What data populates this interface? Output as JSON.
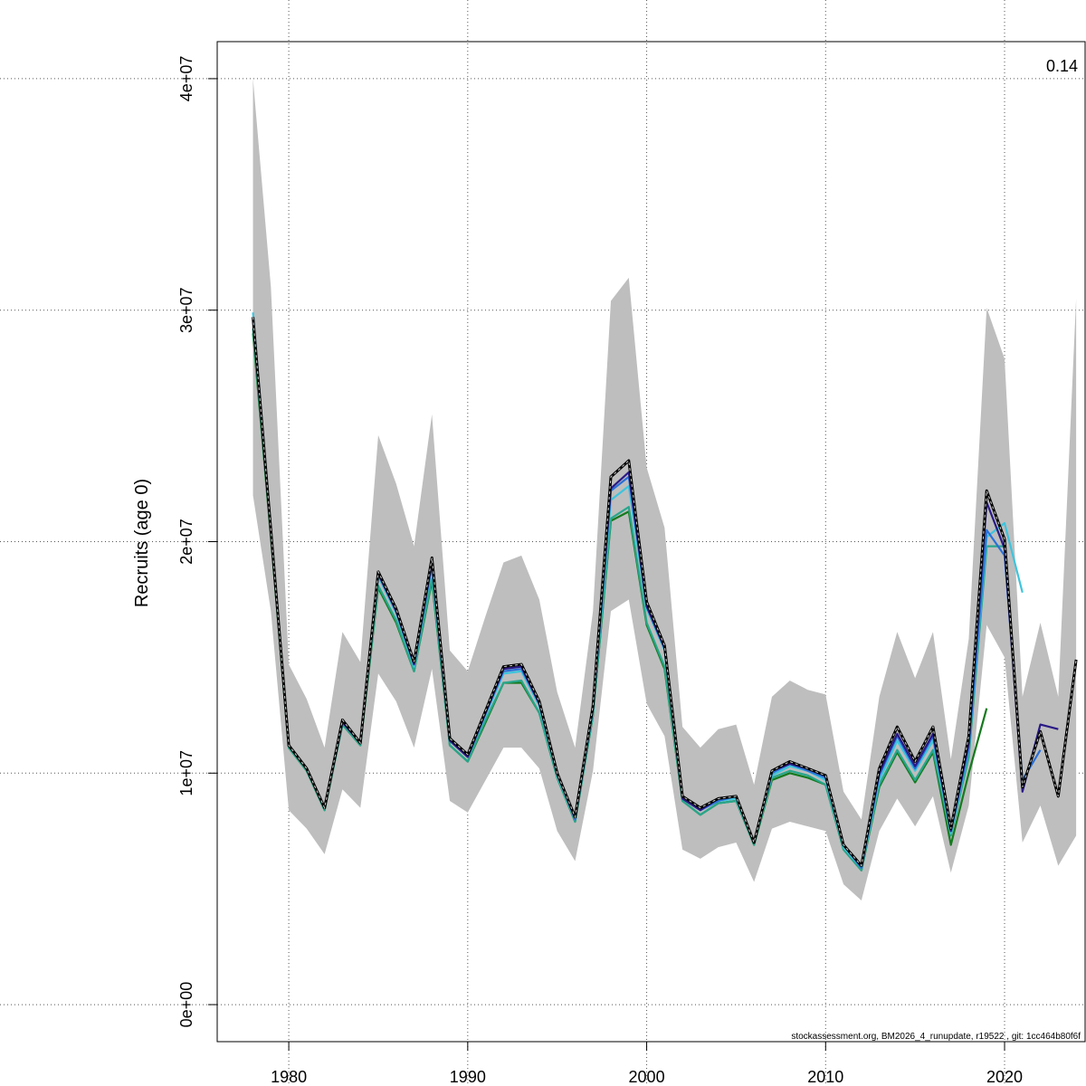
{
  "chart_data": {
    "type": "line",
    "ylabel": "Recruits (age 0)",
    "annotation": "0.14",
    "footer": "stockassessment.org, BM2026_4_runupdate, r19522 , git: 1cc464b80f6f",
    "xlim": [
      1976,
      2024.5
    ],
    "ylim": [
      -1600000,
      41600000
    ],
    "x_ticks": [
      1980,
      1990,
      2000,
      2010,
      2020
    ],
    "x_tick_labels": [
      "1980",
      "1990",
      "2000",
      "2010",
      "2020"
    ],
    "y_ticks": [
      0,
      10000000,
      20000000,
      30000000,
      40000000
    ],
    "y_tick_labels": [
      "0e+00",
      "1e+07",
      "2e+07",
      "3e+07",
      "4e+07"
    ],
    "grid": true,
    "colors": {
      "band": "#bebebe",
      "base": "#000000",
      "base_overlay": "#d3d3d3",
      "retro": [
        "#2a1a86",
        "#2a6fd8",
        "#3ec4dc",
        "#28a68c",
        "#157a1e",
        "#9a9a20"
      ]
    },
    "confidence_band": {
      "x": [
        1978,
        1979,
        1980,
        1981,
        1982,
        1983,
        1984,
        1985,
        1986,
        1987,
        1988,
        1989,
        1990,
        1991,
        1992,
        1993,
        1994,
        1995,
        1996,
        1997,
        1998,
        1999,
        2000,
        2001,
        2002,
        2003,
        2004,
        2005,
        2006,
        2007,
        2008,
        2009,
        2010,
        2011,
        2012,
        2013,
        2014,
        2015,
        2016,
        2017,
        2018,
        2019,
        2020,
        2021,
        2022,
        2023,
        2024
      ],
      "upper": [
        40000000,
        31000000,
        14700000,
        13200000,
        11100000,
        16100000,
        14800000,
        24600000,
        22500000,
        19800000,
        25500000,
        15300000,
        14400000,
        16800000,
        19100000,
        19400000,
        17500000,
        13500000,
        11100000,
        17000000,
        30400000,
        31400000,
        23200000,
        20600000,
        12000000,
        11100000,
        11900000,
        12100000,
        9500000,
        13300000,
        14000000,
        13600000,
        13400000,
        9200000,
        8000000,
        13300000,
        16100000,
        14100000,
        16100000,
        10600000,
        15800000,
        30100000,
        27900000,
        13300000,
        16500000,
        13300000,
        30500000
      ],
      "lower": [
        22000000,
        17000000,
        8400000,
        7600000,
        6500000,
        9300000,
        8500000,
        14300000,
        13100000,
        11100000,
        14500000,
        8800000,
        8300000,
        9700000,
        11100000,
        11100000,
        10200000,
        7500000,
        6200000,
        10100000,
        17000000,
        17500000,
        13000000,
        11600000,
        6700000,
        6300000,
        6800000,
        7000000,
        5300000,
        7600000,
        7900000,
        7700000,
        7500000,
        5200000,
        4500000,
        7500000,
        8900000,
        7700000,
        9000000,
        5700000,
        8600000,
        16400000,
        15000000,
        7000000,
        8600000,
        6000000,
        7300000
      ]
    },
    "series": [
      {
        "x": [
          1978,
          1979,
          1980,
          1981,
          1982,
          1983,
          1984,
          1985,
          1986,
          1987,
          1988,
          1989,
          1990,
          1991,
          1992,
          1993,
          1994,
          1995,
          1996,
          1997,
          1998,
          1999,
          2000,
          2001,
          2002,
          2003,
          2004,
          2005,
          2006,
          2007,
          2008,
          2009,
          2010,
          2011,
          2012,
          2013,
          2014,
          2015,
          2016,
          2017,
          2018,
          2019,
          2020,
          2021,
          2022,
          2023,
          2024
        ],
        "values": [
          29700000,
          20500000,
          11200000,
          10200000,
          8500000,
          12300000,
          11300000,
          18700000,
          17100000,
          14800000,
          19300000,
          11500000,
          10800000,
          12700000,
          14600000,
          14700000,
          13100000,
          10000000,
          8100000,
          12900000,
          22800000,
          23500000,
          17400000,
          15500000,
          9000000,
          8500000,
          8900000,
          9000000,
          7000000,
          10100000,
          10500000,
          10200000,
          9900000,
          6900000,
          6000000,
          10200000,
          12000000,
          10500000,
          12000000,
          7600000,
          11600000,
          22200000,
          20100000,
          9400000,
          11800000,
          9000000,
          14900000
        ]
      },
      {
        "x": [
          1978,
          1979,
          1980,
          1981,
          1982,
          1983,
          1984,
          1985,
          1986,
          1987,
          1988,
          1989,
          1990,
          1991,
          1992,
          1993,
          1994,
          1995,
          1996,
          1997,
          1998,
          1999,
          2000,
          2001,
          2002,
          2003,
          2004,
          2005,
          2006,
          2007,
          2008,
          2009,
          2010,
          2011,
          2012,
          2013,
          2014,
          2015,
          2016,
          2017,
          2018,
          2019,
          2020,
          2021,
          2022,
          2023
        ],
        "values": [
          29600000,
          20400000,
          11200000,
          10200000,
          8500000,
          12200000,
          11300000,
          18600000,
          17000000,
          14700000,
          19100000,
          11400000,
          10700000,
          12600000,
          14500000,
          14600000,
          13000000,
          10000000,
          8100000,
          12800000,
          22300000,
          23000000,
          17200000,
          15400000,
          8900000,
          8400000,
          8900000,
          9000000,
          7000000,
          10100000,
          10400000,
          10200000,
          9900000,
          6900000,
          6000000,
          10000000,
          11700000,
          10300000,
          11700000,
          7500000,
          11300000,
          21700000,
          19700000,
          9200000,
          12100000,
          11900000
        ]
      },
      {
        "x": [
          1978,
          1979,
          1980,
          1981,
          1982,
          1983,
          1984,
          1985,
          1986,
          1987,
          1988,
          1989,
          1990,
          1991,
          1992,
          1993,
          1994,
          1995,
          1996,
          1997,
          1998,
          1999,
          2000,
          2001,
          2002,
          2003,
          2004,
          2005,
          2006,
          2007,
          2008,
          2009,
          2010,
          2011,
          2012,
          2013,
          2014,
          2015,
          2016,
          2017,
          2018,
          2019,
          2020,
          2021,
          2022
        ],
        "values": [
          29700000,
          20500000,
          11200000,
          10200000,
          8500000,
          12300000,
          11300000,
          18700000,
          17000000,
          14700000,
          19000000,
          11400000,
          10700000,
          12600000,
          14400000,
          14500000,
          13000000,
          10000000,
          8000000,
          12800000,
          22200000,
          22800000,
          17200000,
          15400000,
          8900000,
          8400000,
          8800000,
          9000000,
          7000000,
          10000000,
          10400000,
          10100000,
          9800000,
          6900000,
          5900000,
          9900000,
          11600000,
          10200000,
          11600000,
          7500000,
          11100000,
          20500000,
          19400000,
          9700000,
          11000000
        ]
      },
      {
        "x": [
          1978,
          1979,
          1980,
          1981,
          1982,
          1983,
          1984,
          1985,
          1986,
          1987,
          1988,
          1989,
          1990,
          1991,
          1992,
          1993,
          1994,
          1995,
          1996,
          1997,
          1998,
          1999,
          2000,
          2001,
          2002,
          2003,
          2004,
          2005,
          2006,
          2007,
          2008,
          2009,
          2010,
          2011,
          2012,
          2013,
          2014,
          2015,
          2016,
          2017,
          2018,
          2019,
          2020,
          2021
        ],
        "values": [
          29900000,
          20500000,
          11200000,
          10200000,
          8500000,
          12200000,
          11300000,
          18500000,
          16900000,
          14600000,
          18900000,
          11400000,
          10700000,
          12500000,
          14300000,
          14400000,
          12900000,
          9900000,
          8000000,
          12700000,
          21800000,
          22400000,
          17100000,
          15300000,
          8900000,
          8400000,
          8800000,
          8900000,
          7000000,
          9900000,
          10300000,
          10100000,
          9700000,
          6800000,
          5900000,
          9700000,
          11400000,
          10100000,
          11400000,
          7400000,
          11000000,
          20200000,
          20800000,
          17800000
        ]
      },
      {
        "x": [
          1978,
          1979,
          1980,
          1981,
          1982,
          1983,
          1984,
          1985,
          1986,
          1987,
          1988,
          1989,
          1990,
          1991,
          1992,
          1993,
          1994,
          1995,
          1996,
          1997,
          1998,
          1999,
          2000,
          2001,
          2002,
          2003,
          2004,
          2005,
          2006,
          2007,
          2008,
          2009,
          2010,
          2011,
          2012,
          2013,
          2014,
          2015,
          2016,
          2017,
          2018,
          2019,
          2020
        ],
        "values": [
          29200000,
          20300000,
          11100000,
          10100000,
          8400000,
          12100000,
          11200000,
          18100000,
          16600000,
          14400000,
          18400000,
          11200000,
          10500000,
          12300000,
          13900000,
          14000000,
          12600000,
          9800000,
          7900000,
          12500000,
          21000000,
          21500000,
          16500000,
          14600000,
          8800000,
          8200000,
          8700000,
          8800000,
          6900000,
          9800000,
          10100000,
          9900000,
          9500000,
          6700000,
          5800000,
          9500000,
          11000000,
          9700000,
          11000000,
          7300000,
          10700000,
          19800000,
          19800000
        ]
      },
      {
        "x": [
          1978,
          1979,
          1980,
          1981,
          1982,
          1983,
          1984,
          1985,
          1986,
          1987,
          1988,
          1989,
          1990,
          1991,
          1992,
          1993,
          1994,
          1995,
          1996,
          1997,
          1998,
          1999,
          2000,
          2001,
          2002,
          2003,
          2004,
          2005,
          2006,
          2007,
          2008,
          2009,
          2010,
          2011,
          2012,
          2013,
          2014,
          2015,
          2016,
          2017,
          2018,
          2019
        ],
        "values": [
          29000000,
          20200000,
          11100000,
          10100000,
          8400000,
          12100000,
          11200000,
          18000000,
          16500000,
          14400000,
          18300000,
          11200000,
          10500000,
          12200000,
          13900000,
          13900000,
          12600000,
          9800000,
          7900000,
          12500000,
          20900000,
          21300000,
          16400000,
          14500000,
          8800000,
          8200000,
          8700000,
          8800000,
          6900000,
          9700000,
          10000000,
          9800000,
          9500000,
          6700000,
          5800000,
          9400000,
          10900000,
          9600000,
          10900000,
          6900000,
          10000000,
          12800000
        ]
      }
    ]
  }
}
